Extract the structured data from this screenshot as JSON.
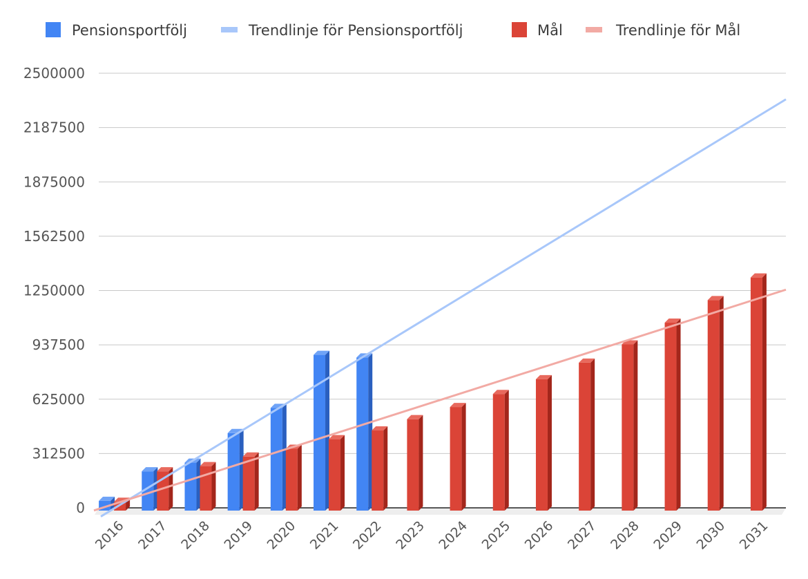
{
  "chart_data": {
    "type": "bar",
    "title": "",
    "xlabel": "",
    "ylabel": "",
    "categories": [
      "2016",
      "2017",
      "2018",
      "2019",
      "2020",
      "2021",
      "2022",
      "2023",
      "2024",
      "2025",
      "2026",
      "2027",
      "2028",
      "2029",
      "2030",
      "2031"
    ],
    "ylim": [
      0,
      2500000
    ],
    "yticks": [
      "0",
      "312500",
      "625000",
      "937500",
      "1250000",
      "1562500",
      "1875000",
      "2187500",
      "2500000"
    ],
    "grid": true,
    "legend_position": "top",
    "series": [
      {
        "name": "Pensionsportfölj",
        "color": "#4285f4",
        "side_color": "#2a5fbf",
        "top_color": "#6fa3f7",
        "values": [
          40000,
          210000,
          260000,
          430000,
          575000,
          880000,
          865000,
          null,
          null,
          null,
          null,
          null,
          null,
          null,
          null,
          null
        ]
      },
      {
        "name": "Mål",
        "color": "#db4437",
        "side_color": "#a3261b",
        "top_color": "#e8695d",
        "values": [
          35000,
          210000,
          240000,
          295000,
          340000,
          395000,
          445000,
          510000,
          580000,
          655000,
          740000,
          835000,
          940000,
          1065000,
          1195000,
          1325000
        ]
      }
    ],
    "trendlines": [
      {
        "name": "Trendlinje för Pensionsportfölj",
        "color": "#a8c7fa",
        "start_value": -50000,
        "end_value": 2350000
      },
      {
        "name": "Trendlinje för Mål",
        "color": "#f2aaa4",
        "start_value": -15000,
        "end_value": 1255000
      }
    ]
  }
}
